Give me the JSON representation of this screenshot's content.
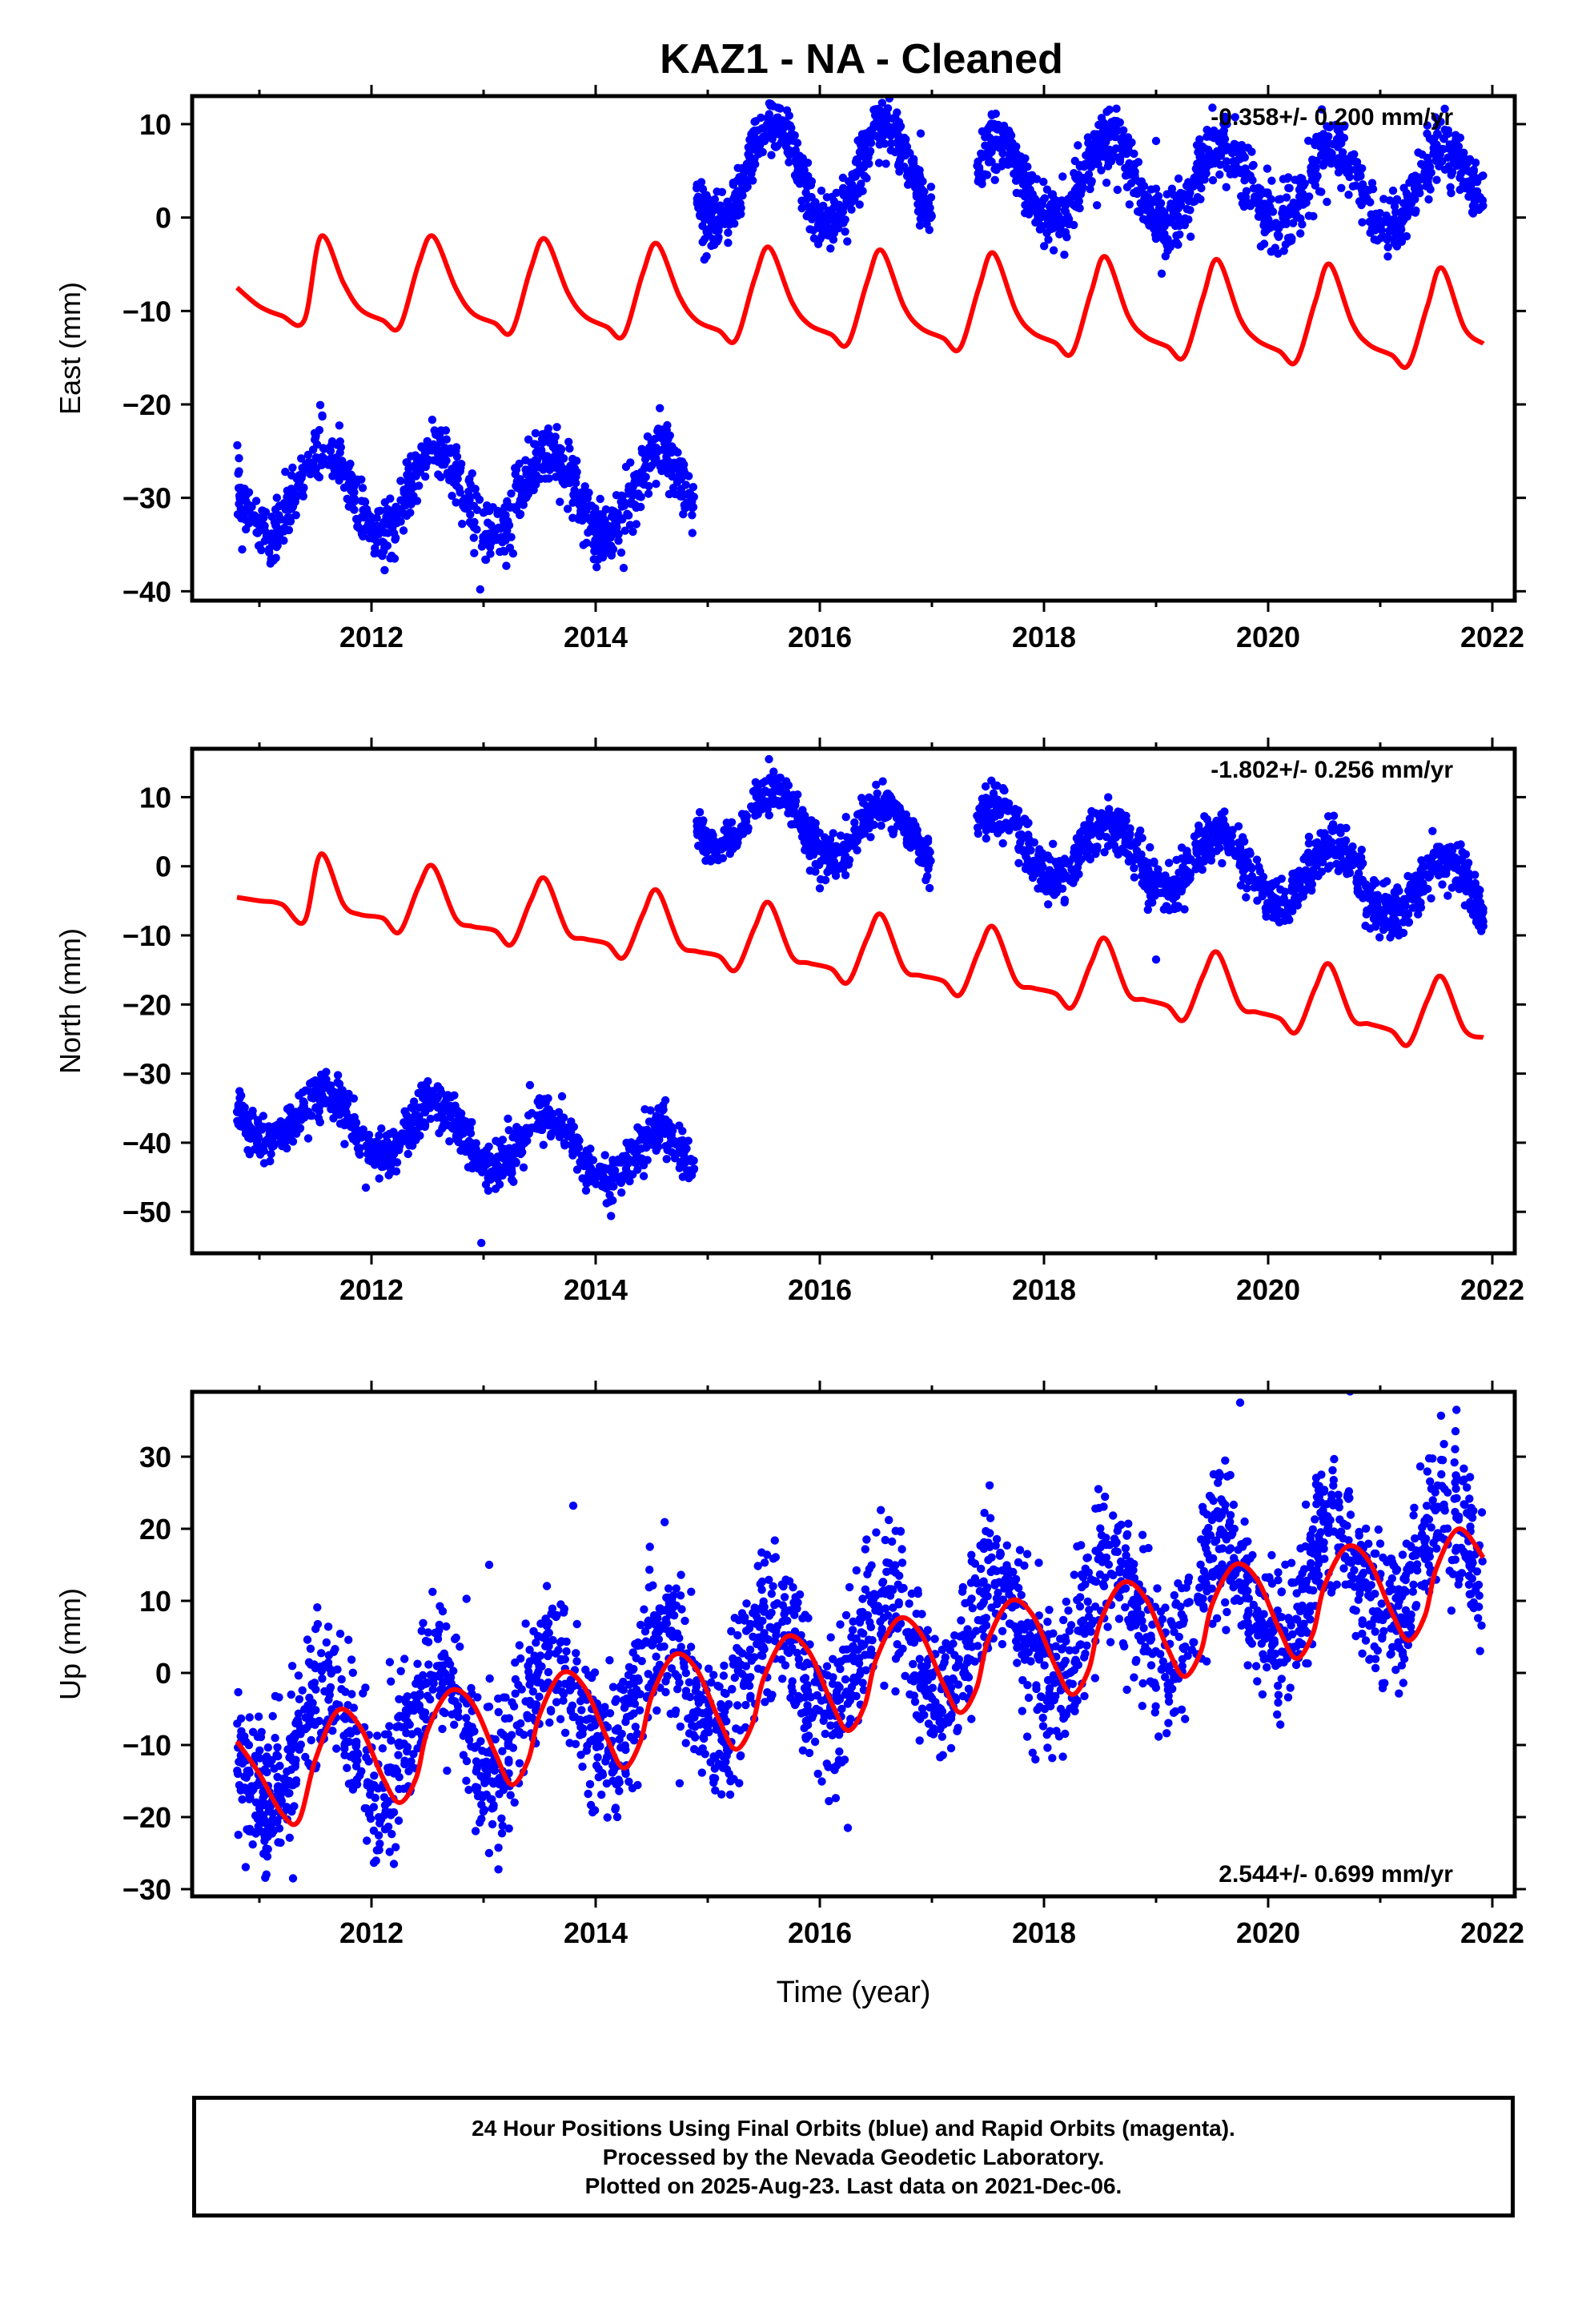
{
  "title": "KAZ1  - NA - Cleaned",
  "colors": {
    "observations": "#0000ff",
    "model": "#ff0000",
    "axis": "#000000"
  },
  "footer": {
    "line1": "24 Hour Positions Using Final Orbits (blue) and Rapid Orbits (magenta).",
    "line2": "Processed by the Nevada Geodetic Laboratory.",
    "line3": "Plotted on 2025-Aug-23. Last data on 2021-Dec-06."
  },
  "chart_data": [
    {
      "type": "scatter",
      "panel": "east",
      "ylabel": "East (mm)",
      "xlabel": "",
      "xlim": [
        2010.4,
        2022.2
      ],
      "ylim": [
        -41,
        13
      ],
      "xticks": [
        2012,
        2014,
        2016,
        2018,
        2020,
        2022
      ],
      "yticks": [
        -40,
        -30,
        -20,
        -10,
        0,
        10
      ],
      "annotation": "-0.358+/- 0.200 mm/yr",
      "series": [
        {
          "role": "observations",
          "segments": [
            {
              "start": 2010.8,
              "end": 2014.88,
              "base": -29.5,
              "amp": 4.5,
              "trend": 0,
              "noise": 1.6,
              "n": 1000
            },
            {
              "start": 2014.9,
              "end": 2017.0,
              "base": 4.5,
              "amp": 5.2,
              "trend": 0,
              "noise": 1.5,
              "n": 560
            },
            {
              "start": 2017.4,
              "end": 2021.92,
              "base": 4.0,
              "amp": 4.2,
              "trend": -0.2,
              "noise": 1.7,
              "n": 1150
            }
          ],
          "outliers": [
            [
              2012.97,
              -39.8
            ],
            [
              2014.25,
              -37.5
            ],
            [
              2019.05,
              -6.0
            ],
            [
              2019.0,
              8.2
            ],
            [
              2016.9,
              9.0
            ]
          ]
        },
        {
          "role": "model",
          "x": [
            2010.8,
            2011.0,
            2011.2,
            2011.4,
            2011.55,
            2011.75,
            2011.9,
            2012.1,
            2012.25,
            2012.42,
            2012.55,
            2012.75,
            2012.9,
            2013.1,
            2013.25,
            2013.42,
            2013.55,
            2013.75,
            2013.9,
            2014.1,
            2014.25,
            2014.42,
            2014.55,
            2014.75,
            2014.9,
            2015.1,
            2015.25,
            2015.42,
            2015.55,
            2015.75,
            2015.9,
            2016.1,
            2016.25,
            2016.42,
            2016.55,
            2016.75,
            2016.9,
            2017.1,
            2017.25,
            2017.42,
            2017.55,
            2017.75,
            2017.9,
            2018.1,
            2018.25,
            2018.42,
            2018.55,
            2018.75,
            2018.9,
            2019.1,
            2019.25,
            2019.42,
            2019.55,
            2019.75,
            2019.9,
            2020.1,
            2020.25,
            2020.42,
            2020.55,
            2020.75,
            2020.9,
            2021.1,
            2021.25,
            2021.42,
            2021.55,
            2021.75,
            2021.92
          ],
          "y": [
            -7.5,
            -9.5,
            -10.5,
            -11.0,
            -2.0,
            -7.0,
            -9.8,
            -11.0,
            -11.7,
            -5.0,
            -2.0,
            -7.5,
            -10.2,
            -11.3,
            -12.2,
            -5.5,
            -2.3,
            -8.0,
            -10.5,
            -11.7,
            -12.6,
            -6.0,
            -2.8,
            -8.5,
            -11.0,
            -12.1,
            -13.1,
            -6.5,
            -3.2,
            -9.0,
            -11.4,
            -12.5,
            -13.5,
            -7.0,
            -3.5,
            -9.5,
            -11.8,
            -12.9,
            -14.0,
            -7.5,
            -3.8,
            -10.0,
            -12.3,
            -13.4,
            -14.5,
            -8.0,
            -4.2,
            -10.5,
            -12.7,
            -13.8,
            -14.9,
            -8.5,
            -4.5,
            -10.8,
            -13.1,
            -14.3,
            -15.4,
            -9.0,
            -5.0,
            -11.3,
            -13.6,
            -14.7,
            -15.8,
            -9.5,
            -5.4,
            -11.8,
            -13.5
          ]
        }
      ]
    },
    {
      "type": "scatter",
      "panel": "north",
      "ylabel": "North (mm)",
      "xlabel": "",
      "xlim": [
        2010.4,
        2022.2
      ],
      "ylim": [
        -56,
        17
      ],
      "xticks": [
        2012,
        2014,
        2016,
        2018,
        2020,
        2022
      ],
      "yticks": [
        -50,
        -40,
        -30,
        -20,
        -10,
        0,
        10
      ],
      "annotation": "-1.802+/- 0.256 mm/yr",
      "series": [
        {
          "role": "observations",
          "segments": [
            {
              "start": 2010.8,
              "end": 2014.88,
              "base": -35.5,
              "amp": 4.2,
              "trend": -1.8,
              "noise": 1.7,
              "n": 1000
            },
            {
              "start": 2014.9,
              "end": 2017.0,
              "base": 7.5,
              "amp": 4.3,
              "trend": -1.8,
              "noise": 1.5,
              "n": 560
            },
            {
              "start": 2017.4,
              "end": 2021.92,
              "base": 4.0,
              "amp": 4.6,
              "trend": -1.8,
              "noise": 1.8,
              "n": 1150
            }
          ],
          "outliers": [
            [
              2012.98,
              -54.5
            ],
            [
              2011.95,
              -46.5
            ],
            [
              2016.0,
              -3.2
            ],
            [
              2019.0,
              -13.5
            ]
          ]
        },
        {
          "role": "model",
          "x": [
            2010.8,
            2011.0,
            2011.2,
            2011.4,
            2011.55,
            2011.75,
            2011.9,
            2012.1,
            2012.25,
            2012.42,
            2012.55,
            2012.75,
            2012.9,
            2013.1,
            2013.25,
            2013.42,
            2013.55,
            2013.75,
            2013.9,
            2014.1,
            2014.25,
            2014.42,
            2014.55,
            2014.75,
            2014.9,
            2015.1,
            2015.25,
            2015.42,
            2015.55,
            2015.75,
            2015.9,
            2016.1,
            2016.25,
            2016.42,
            2016.55,
            2016.75,
            2016.9,
            2017.1,
            2017.25,
            2017.42,
            2017.55,
            2017.75,
            2017.9,
            2018.1,
            2018.25,
            2018.42,
            2018.55,
            2018.75,
            2018.9,
            2019.1,
            2019.25,
            2019.42,
            2019.55,
            2019.75,
            2019.9,
            2020.1,
            2020.25,
            2020.42,
            2020.55,
            2020.75,
            2020.9,
            2021.1,
            2021.25,
            2021.42,
            2021.55,
            2021.75,
            2021.92
          ],
          "y": [
            -4.5,
            -5.0,
            -5.5,
            -8.0,
            1.8,
            -5.5,
            -7.0,
            -7.5,
            -9.5,
            -3.0,
            0.0,
            -7.5,
            -8.7,
            -9.3,
            -11.3,
            -5.0,
            -1.8,
            -9.5,
            -10.5,
            -11.2,
            -13.2,
            -7.0,
            -3.5,
            -11.2,
            -12.3,
            -13.0,
            -15.0,
            -8.8,
            -5.3,
            -13.0,
            -14.0,
            -14.8,
            -16.8,
            -10.5,
            -7.0,
            -14.8,
            -15.8,
            -16.6,
            -18.6,
            -12.2,
            -8.8,
            -16.6,
            -17.6,
            -18.4,
            -20.4,
            -14.0,
            -10.5,
            -18.4,
            -19.3,
            -20.2,
            -22.2,
            -15.8,
            -12.5,
            -20.2,
            -21.1,
            -22.0,
            -24.0,
            -17.6,
            -14.2,
            -22.0,
            -22.8,
            -23.8,
            -25.8,
            -19.4,
            -16.0,
            -23.6,
            -24.8
          ]
        }
      ]
    },
    {
      "type": "scatter",
      "panel": "up",
      "ylabel": "Up (mm)",
      "xlabel": "Time (year)",
      "xlim": [
        2010.4,
        2022.2
      ],
      "ylim": [
        -31,
        39
      ],
      "xticks": [
        2012,
        2014,
        2016,
        2018,
        2020,
        2022
      ],
      "yticks": [
        -30,
        -20,
        -10,
        0,
        10,
        20,
        30
      ],
      "annotation": "2.544+/- 0.699 mm/yr",
      "series": [
        {
          "role": "observations",
          "segments": [
            {
              "start": 2010.8,
              "end": 2021.92,
              "base": -12.0,
              "amp": 7.5,
              "trend": 2.544,
              "noise": 5.0,
              "n": 2900
            }
          ],
          "outliers": [
            [
              2013.8,
              23.2
            ],
            [
              2019.75,
              37.5
            ],
            [
              2021.68,
              36.5
            ],
            [
              2016.25,
              -21.5
            ],
            [
              2011.3,
              -28.5
            ],
            [
              2012.2,
              -26.5
            ],
            [
              2013.05,
              15.0
            ]
          ]
        },
        {
          "role": "model",
          "x": [
            2010.8,
            2011.0,
            2011.2,
            2011.35,
            2011.5,
            2011.7,
            2011.9,
            2012.1,
            2012.25,
            2012.4,
            2012.5,
            2012.7,
            2012.9,
            2013.1,
            2013.25,
            2013.4,
            2013.5,
            2013.7,
            2013.9,
            2014.1,
            2014.25,
            2014.4,
            2014.5,
            2014.7,
            2014.9,
            2015.1,
            2015.25,
            2015.4,
            2015.5,
            2015.7,
            2015.9,
            2016.1,
            2016.25,
            2016.4,
            2016.5,
            2016.7,
            2016.9,
            2017.1,
            2017.25,
            2017.4,
            2017.5,
            2017.7,
            2017.9,
            2018.1,
            2018.25,
            2018.4,
            2018.5,
            2018.7,
            2018.9,
            2019.1,
            2019.25,
            2019.4,
            2019.5,
            2019.7,
            2019.9,
            2020.1,
            2020.25,
            2020.4,
            2020.5,
            2020.7,
            2020.9,
            2021.1,
            2021.25,
            2021.4,
            2021.5,
            2021.7,
            2021.92
          ],
          "y": [
            -9.5,
            -14.0,
            -19.5,
            -20.5,
            -12.0,
            -5.2,
            -7.5,
            -14.5,
            -18.0,
            -14.5,
            -8.0,
            -2.5,
            -4.2,
            -11.0,
            -15.5,
            -12.0,
            -5.8,
            0.0,
            -2.0,
            -9.0,
            -13.2,
            -9.5,
            -3.2,
            2.5,
            0.5,
            -6.5,
            -10.6,
            -7.0,
            -0.7,
            5.0,
            3.0,
            -4.0,
            -8.0,
            -4.5,
            1.8,
            7.5,
            5.5,
            -1.5,
            -5.5,
            -2.0,
            4.5,
            10.0,
            8.0,
            1.0,
            -3.0,
            0.5,
            7.0,
            12.5,
            10.5,
            3.5,
            -0.5,
            3.0,
            9.5,
            15.0,
            13.0,
            6.0,
            2.0,
            5.5,
            12.0,
            17.5,
            15.5,
            8.5,
            4.5,
            8.0,
            14.5,
            20.0,
            16.0
          ]
        }
      ]
    }
  ]
}
